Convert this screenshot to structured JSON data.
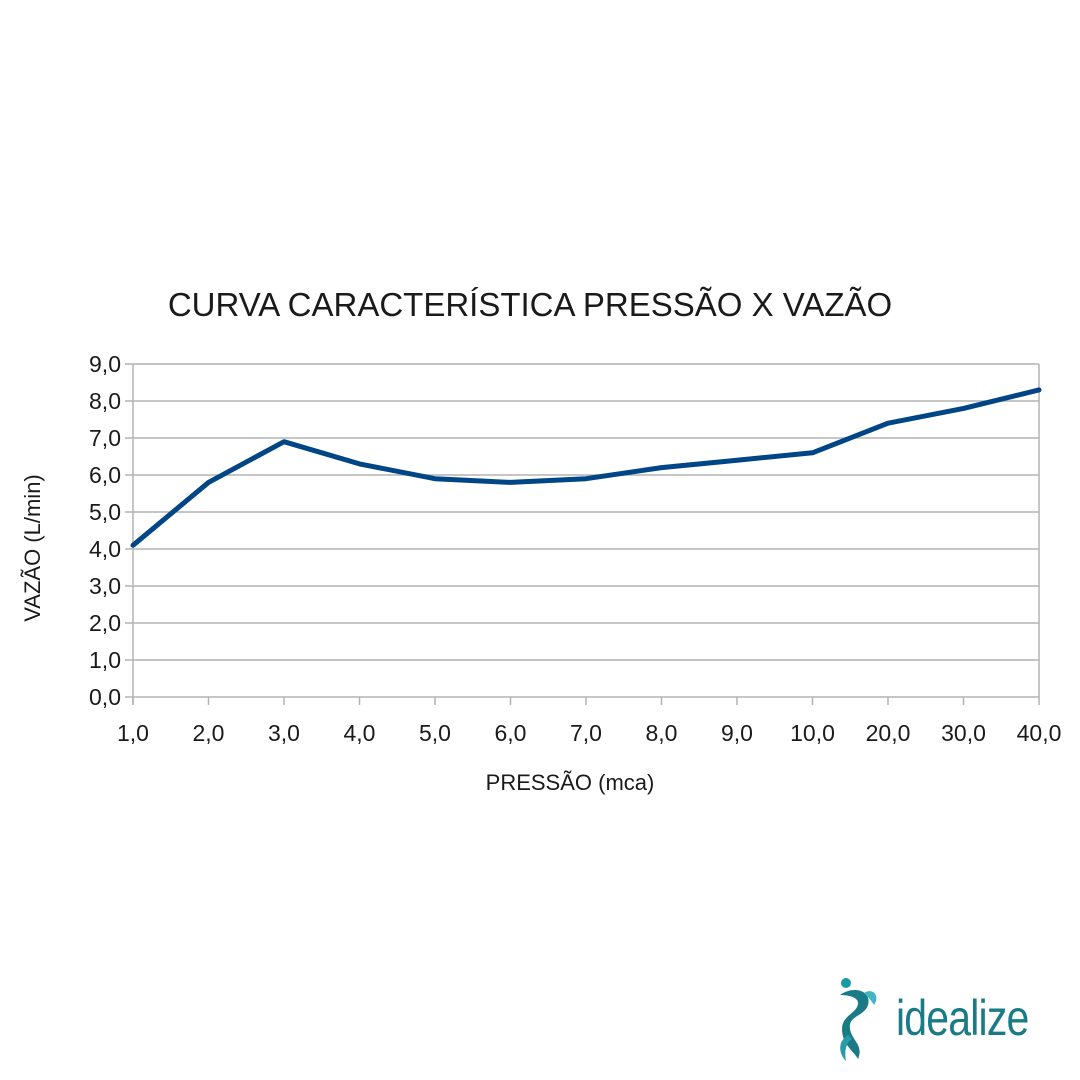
{
  "chart_data": {
    "type": "line",
    "title": "CURVA CARACTERÍSTICA PRESSÃO X VAZÃO",
    "xlabel": "PRESSÃO (mca)",
    "ylabel": "VAZÃO (L/min)",
    "categories": [
      "1,0",
      "2,0",
      "3,0",
      "4,0",
      "5,0",
      "6,0",
      "7,0",
      "8,0",
      "9,0",
      "10,0",
      "20,0",
      "30,0",
      "40,0"
    ],
    "series": [
      {
        "values": [
          4.1,
          5.8,
          6.9,
          6.3,
          5.9,
          5.8,
          5.9,
          6.2,
          6.4,
          6.6,
          7.4,
          7.8,
          8.3
        ],
        "color": "#004586"
      }
    ],
    "ylim": [
      0,
      9
    ],
    "yticks": [
      "0,0",
      "1,0",
      "2,0",
      "3,0",
      "4,0",
      "5,0",
      "6,0",
      "7,0",
      "8,0",
      "9,0"
    ],
    "grid": true,
    "legend": "none"
  },
  "logo": {
    "text": "idealize",
    "color": "#1a7a86"
  }
}
